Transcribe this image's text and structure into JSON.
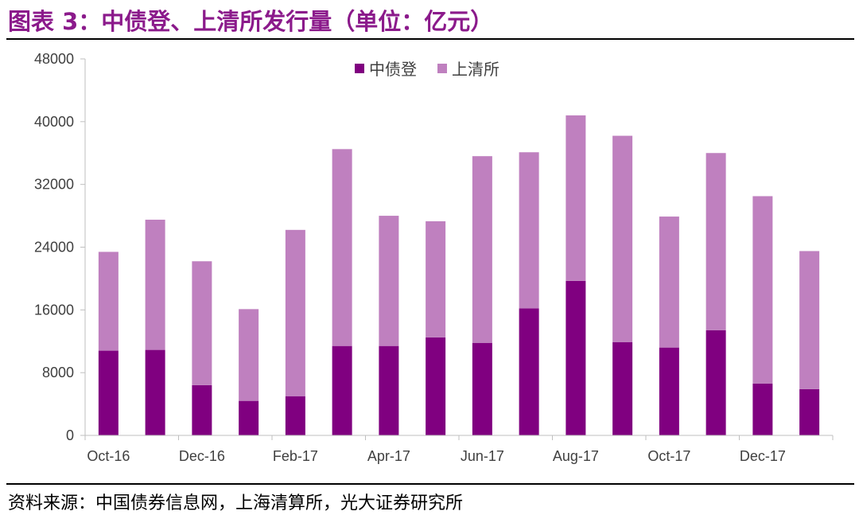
{
  "header": {
    "title": "图表 3：中债登、上清所发行量（单位：亿元）"
  },
  "footer": {
    "source": "资料来源：中国债券信息网，上海清算所，光大证券研究所"
  },
  "colors": {
    "series1": "#800080",
    "series2": "#bf80bf",
    "title": "#8b1a8b"
  },
  "chart_data": {
    "type": "bar",
    "stacked": true,
    "title": "图表 3：中债登、上清所发行量（单位：亿元）",
    "categories": [
      "Oct-16",
      "Nov-16",
      "Dec-16",
      "Jan-17",
      "Feb-17",
      "Mar-17",
      "Apr-17",
      "May-17",
      "Jun-17",
      "Jul-17",
      "Aug-17",
      "Sep-17",
      "Oct-17",
      "Nov-17",
      "Dec-17",
      "Jan-18"
    ],
    "x_tick_labels": [
      "Oct-16",
      "Dec-16",
      "Feb-17",
      "Apr-17",
      "Jun-17",
      "Aug-17",
      "Oct-17",
      "Dec-17"
    ],
    "y_ticks": [
      "48000",
      "40000",
      "32000",
      "24000",
      "16000",
      "8000",
      "0"
    ],
    "ylim": [
      0,
      48000
    ],
    "series": [
      {
        "name": "中债登",
        "color": "#800080",
        "values": [
          10800,
          10900,
          6400,
          4400,
          5000,
          11400,
          11400,
          12500,
          11800,
          16200,
          19700,
          11900,
          11200,
          13400,
          6600,
          5900
        ]
      },
      {
        "name": "上清所",
        "color": "#bf80bf",
        "values": [
          12600,
          16600,
          15800,
          11700,
          21200,
          25100,
          16600,
          14800,
          23800,
          19900,
          21100,
          26300,
          16700,
          22600,
          23900,
          17600
        ]
      }
    ],
    "legend_position": "top-center",
    "grid": false
  }
}
